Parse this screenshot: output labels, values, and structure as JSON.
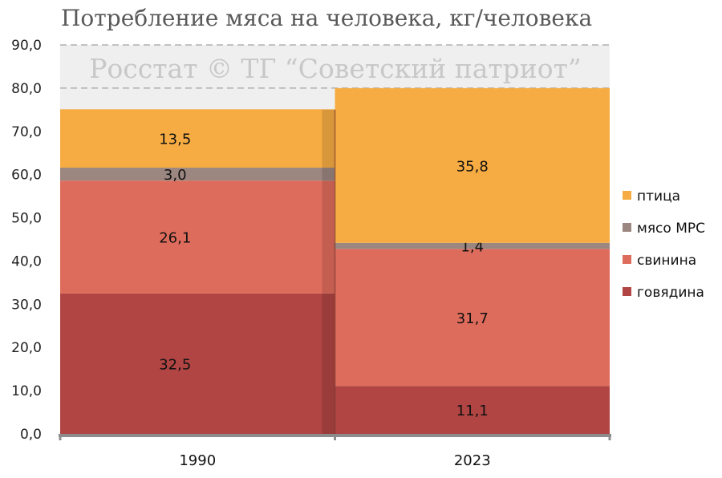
{
  "chart_data": {
    "type": "bar",
    "title": "Потребление мяса на человека, кг/человека",
    "watermark": "Росстат © ТГ “Советский патриот”",
    "xlabel": "",
    "ylabel": "",
    "ylim": [
      0,
      90
    ],
    "yticks": [
      "0,0",
      "10,0",
      "20,0",
      "30,0",
      "40,0",
      "50,0",
      "60,0",
      "70,0",
      "80,0",
      "90,0"
    ],
    "categories": [
      "1990",
      "2023"
    ],
    "grid": true,
    "legend_position": "right",
    "series": [
      {
        "name": "говядина",
        "color": "#b04543",
        "values": [
          32.5,
          11.1
        ],
        "labels": [
          "32,5",
          "11,1"
        ]
      },
      {
        "name": "свинина",
        "color": "#de6c5c",
        "values": [
          26.1,
          31.7
        ],
        "labels": [
          "26,1",
          "31,7"
        ]
      },
      {
        "name": "мясо МРС",
        "color": "#9b8680",
        "values": [
          3.0,
          1.4
        ],
        "labels": [
          "3,0",
          "1,4"
        ]
      },
      {
        "name": "птица",
        "color": "#f6ac42",
        "values": [
          13.5,
          35.8
        ],
        "labels": [
          "13,5",
          "35,8"
        ]
      }
    ]
  }
}
